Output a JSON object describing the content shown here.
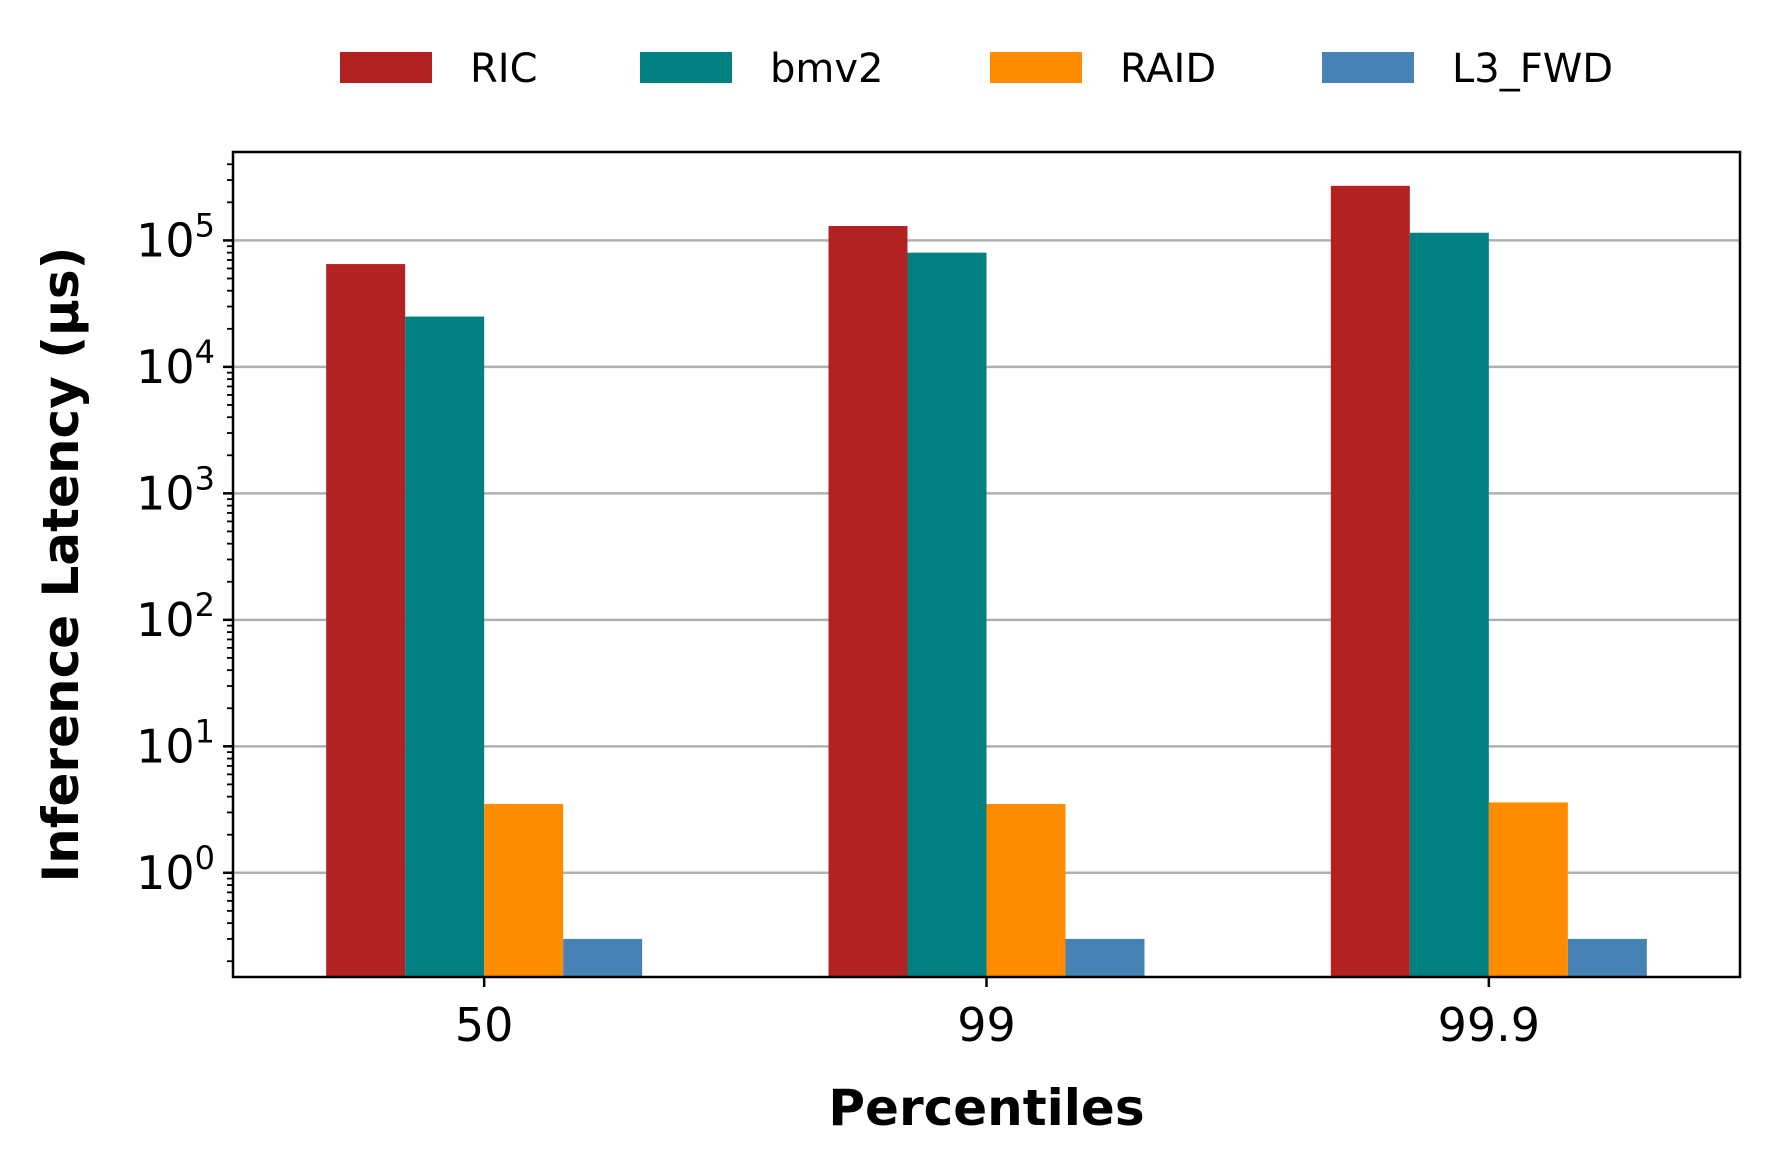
{
  "chart_data": {
    "type": "bar",
    "scale": "log",
    "categories": [
      "50",
      "99",
      "99.9"
    ],
    "series": [
      {
        "name": "RIC",
        "color": "#b22222",
        "values": [
          65000,
          130000,
          270000
        ]
      },
      {
        "name": "bmv2",
        "color": "#008080",
        "values": [
          25000,
          80000,
          115000
        ]
      },
      {
        "name": "RAID",
        "color": "#ff8c00",
        "values": [
          3.5,
          3.5,
          3.6
        ]
      },
      {
        "name": "L3_FWD",
        "color": "#4682b4",
        "values": [
          0.3,
          0.3,
          0.3
        ]
      }
    ],
    "xlabel": "Percentiles",
    "ylabel": "Inference Latency (µs)",
    "ylim": [
      0.15,
      500000
    ],
    "yticks": [
      {
        "value": 1,
        "base": "10",
        "exp": "0"
      },
      {
        "value": 10,
        "base": "10",
        "exp": "1"
      },
      {
        "value": 100,
        "base": "10",
        "exp": "2"
      },
      {
        "value": 1000,
        "base": "10",
        "exp": "3"
      },
      {
        "value": 10000,
        "base": "10",
        "exp": "4"
      },
      {
        "value": 100000,
        "base": "10",
        "exp": "5"
      }
    ],
    "grid": "y-major",
    "legend_position": "top"
  }
}
